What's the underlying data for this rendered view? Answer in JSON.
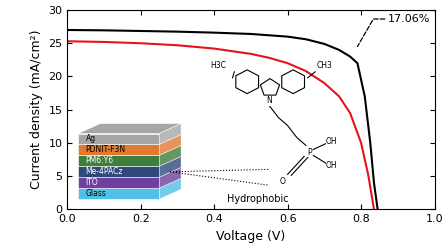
{
  "chart_data": {
    "type": "line",
    "x_label": "Voltage (V)",
    "y_label": "Current density (mA/cm²)",
    "xlim": [
      0.0,
      1.0
    ],
    "xticks": [
      0.0,
      0.2,
      0.4,
      0.6,
      0.8,
      1.0
    ],
    "ylim": [
      0,
      30
    ],
    "yticks": [
      0,
      5,
      10,
      15,
      20,
      25,
      30
    ],
    "series": [
      {
        "color": "#000000",
        "x": [
          0.0,
          0.1,
          0.2,
          0.3,
          0.4,
          0.5,
          0.6,
          0.65,
          0.7,
          0.74,
          0.77,
          0.79,
          0.81,
          0.825,
          0.835,
          0.845
        ],
        "values": [
          27.0,
          26.95,
          26.85,
          26.75,
          26.6,
          26.4,
          26.0,
          25.6,
          24.9,
          24.0,
          23.0,
          22.0,
          17.0,
          10.0,
          4.0,
          0.0
        ]
      },
      {
        "color": "#e8121b",
        "x": [
          0.0,
          0.1,
          0.2,
          0.3,
          0.4,
          0.5,
          0.55,
          0.6,
          0.65,
          0.7,
          0.74,
          0.77,
          0.8,
          0.82,
          0.835
        ],
        "values": [
          25.3,
          25.2,
          25.0,
          24.7,
          24.2,
          23.4,
          22.8,
          22.0,
          20.8,
          19.0,
          17.0,
          14.5,
          10.0,
          5.0,
          0.0
        ]
      }
    ],
    "annotations": [
      {
        "text": "17.06%",
        "x": 0.79,
        "y": 24.5
      }
    ],
    "inset": {
      "layers": [
        {
          "label": "Ag",
          "color": "#a6a6a6"
        },
        {
          "label": "PDNIT-F3N",
          "color": "#e07a32"
        },
        {
          "label": "PM6:Y6",
          "color": "#3d7d3d"
        },
        {
          "label": "Me-4PACz",
          "color": "#2f4a7a"
        },
        {
          "label": "ITO",
          "color": "#7040a0"
        },
        {
          "label": "Glass",
          "color": "#4fc0e8"
        }
      ],
      "molecule_labels": [
        "H3C",
        "CH3",
        "N",
        "P",
        "O",
        "OH",
        "OH"
      ],
      "note": "Hydrophobic"
    }
  }
}
